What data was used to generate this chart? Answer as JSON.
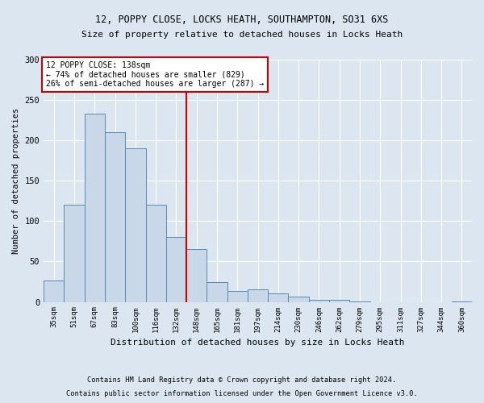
{
  "title1": "12, POPPY CLOSE, LOCKS HEATH, SOUTHAMPTON, SO31 6XS",
  "title2": "Size of property relative to detached houses in Locks Heath",
  "xlabel": "Distribution of detached houses by size in Locks Heath",
  "ylabel": "Number of detached properties",
  "footnote1": "Contains HM Land Registry data © Crown copyright and database right 2024.",
  "footnote2": "Contains public sector information licensed under the Open Government Licence v3.0.",
  "bin_labels": [
    "35sqm",
    "51sqm",
    "67sqm",
    "83sqm",
    "100sqm",
    "116sqm",
    "132sqm",
    "148sqm",
    "165sqm",
    "181sqm",
    "197sqm",
    "214sqm",
    "230sqm",
    "246sqm",
    "262sqm",
    "279sqm",
    "295sqm",
    "311sqm",
    "327sqm",
    "344sqm",
    "360sqm"
  ],
  "bar_heights": [
    27,
    120,
    233,
    210,
    190,
    120,
    80,
    65,
    25,
    14,
    16,
    11,
    7,
    3,
    3,
    1,
    0,
    0,
    0,
    0,
    1
  ],
  "bar_color": "#c8d8e8",
  "bar_edge_color": "#5a8ab0",
  "marker_bin_index": 6,
  "marker_line_color": "#cc0000",
  "annotation_text1": "12 POPPY CLOSE: 138sqm",
  "annotation_text2": "← 74% of detached houses are smaller (829)",
  "annotation_text3": "26% of semi-detached houses are larger (287) →",
  "annotation_box_color": "#ffffff",
  "annotation_box_edge": "#cc0000",
  "ylim": [
    0,
    300
  ],
  "yticks": [
    0,
    50,
    100,
    150,
    200,
    250,
    300
  ],
  "background_color": "#dce6f0",
  "grid_color": "#ffffff"
}
